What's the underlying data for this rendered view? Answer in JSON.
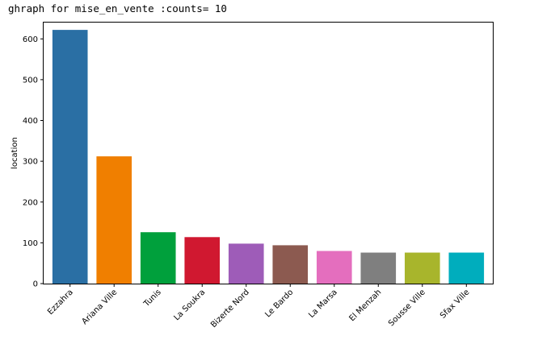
{
  "title": "ghraph for mise_en_vente :counts= 10",
  "chart_data": {
    "type": "bar",
    "title": "ghraph for mise_en_vente :counts= 10",
    "xlabel": "",
    "ylabel": "location",
    "ylim": [
      0,
      640
    ],
    "yticks": [
      0,
      100,
      200,
      300,
      400,
      500,
      600
    ],
    "categories": [
      "Ezzahra",
      "Ariana Ville",
      "Tunis",
      "La Soukra",
      "Bizerte Nord",
      "Le Bardo",
      "La Marsa",
      "El Menzah",
      "Sousse Ville",
      "Sfax Ville"
    ],
    "values": [
      622,
      312,
      126,
      114,
      98,
      94,
      80,
      76,
      76,
      76
    ],
    "colors": [
      "#2a6fa4",
      "#f07f00",
      "#00a03c",
      "#d01830",
      "#9e5cb8",
      "#8c5a50",
      "#e46ebe",
      "#7f7f7f",
      "#a8b52c",
      "#00adbd"
    ],
    "grid": false,
    "legend": "none"
  }
}
